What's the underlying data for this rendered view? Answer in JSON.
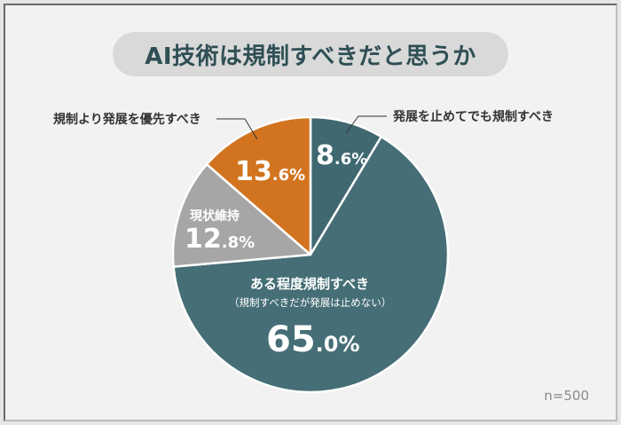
{
  "title": "AI技術は規制すべきだと思うか",
  "sample": "n=500",
  "colors": {
    "dark_teal": "#3f6870",
    "teal": "#456e76",
    "gray": "#a6a6a6",
    "orange": "#d2741f",
    "background": "#f2f2f2",
    "title_bg": "#d9d9d9",
    "title_text": "#2f4f55"
  },
  "chart_data": {
    "type": "pie",
    "title": "AI技術は規制すべきだと思うか",
    "note": "n=500",
    "start_angle": "12 o'clock, clockwise",
    "slices": [
      {
        "label": "発展を止めてでも規制すべき",
        "value": 8.6,
        "display_int": "8",
        "display_dec": ".6%",
        "color": "#3f6870"
      },
      {
        "label": "ある程度規制すべき",
        "sublabel": "（規制すべきだが発展は止めない）",
        "value": 65.0,
        "display_int": "65",
        "display_dec": ".0%",
        "color": "#456e76"
      },
      {
        "label": "現状維持",
        "value": 12.8,
        "display_int": "12",
        "display_dec": ".8%",
        "color": "#a6a6a6"
      },
      {
        "label": "規制より発展を優先すべき",
        "value": 13.6,
        "display_int": "13",
        "display_dec": ".6%",
        "color": "#d2741f"
      }
    ]
  }
}
